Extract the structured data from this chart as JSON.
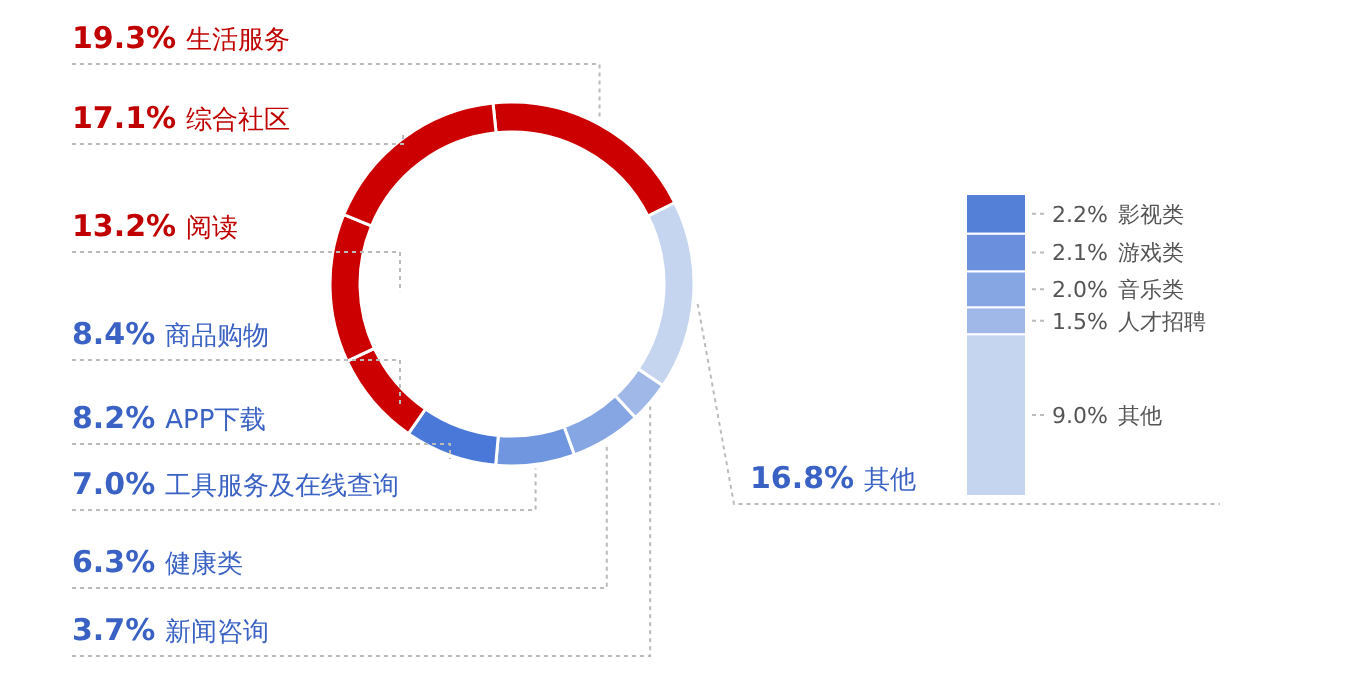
{
  "chart_data": [
    {
      "type": "donut",
      "categories": [
        "生活服务",
        "其他",
        "新闻咨询",
        "健康类",
        "工具服务及在线查询",
        "APP下载",
        "商品购物",
        "阅读",
        "综合社区"
      ],
      "values": [
        19.3,
        16.8,
        3.7,
        6.3,
        7.0,
        8.2,
        8.4,
        13.2,
        17.1
      ],
      "value_labels": [
        "19.3%",
        "16.8%",
        "3.7%",
        "6.3%",
        "7.0%",
        "8.2%",
        "8.4%",
        "13.2%",
        "17.1%"
      ],
      "colors": [
        "#cc0000",
        "#c5d5f0",
        "#a0b8e8",
        "#85a5e3",
        "#7096e0",
        "#4a78d8",
        "#cc0000",
        "#cc0000",
        "#cc0000"
      ]
    },
    {
      "type": "bar",
      "stacked": true,
      "categories": [
        null
      ],
      "series": [
        {
          "name": "其他",
          "color": "#c5d5f0",
          "values": [
            9.0
          ],
          "value_labels": [
            "9.0%"
          ]
        },
        {
          "name": "人才招聘",
          "color": "#a0b8e8",
          "values": [
            1.5
          ],
          "value_labels": [
            "1.5%"
          ]
        },
        {
          "name": "音乐类",
          "color": "#85a5e3",
          "values": [
            2.0
          ],
          "value_labels": [
            "2.0%"
          ]
        },
        {
          "name": "游戏类",
          "color": "#6a90dd",
          "values": [
            2.1
          ],
          "value_labels": [
            "2.1%"
          ]
        },
        {
          "name": "影视类",
          "color": "#5580d8",
          "values": [
            2.2
          ],
          "value_labels": [
            "2.2%"
          ]
        }
      ]
    }
  ]
}
